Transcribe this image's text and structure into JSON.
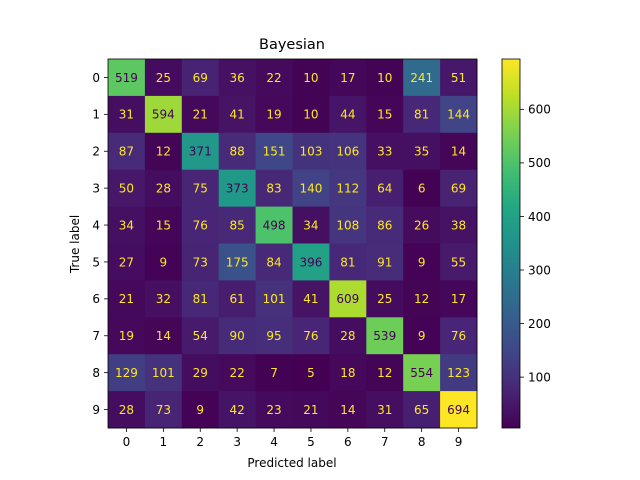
{
  "chart_data": {
    "type": "heatmap",
    "title": "Bayesian",
    "xlabel": "Predicted label",
    "ylabel": "True label",
    "x_categories": [
      "0",
      "1",
      "2",
      "3",
      "4",
      "5",
      "6",
      "7",
      "8",
      "9"
    ],
    "y_categories": [
      "0",
      "1",
      "2",
      "3",
      "4",
      "5",
      "6",
      "7",
      "8",
      "9"
    ],
    "matrix": [
      [
        519,
        25,
        69,
        36,
        22,
        10,
        17,
        10,
        241,
        51
      ],
      [
        31,
        594,
        21,
        41,
        19,
        10,
        44,
        15,
        81,
        144
      ],
      [
        87,
        12,
        371,
        88,
        151,
        103,
        106,
        33,
        35,
        14
      ],
      [
        50,
        28,
        75,
        373,
        83,
        140,
        112,
        64,
        6,
        69
      ],
      [
        34,
        15,
        76,
        85,
        498,
        34,
        108,
        86,
        26,
        38
      ],
      [
        27,
        9,
        73,
        175,
        84,
        396,
        81,
        91,
        9,
        55
      ],
      [
        21,
        32,
        81,
        61,
        101,
        41,
        609,
        25,
        12,
        17
      ],
      [
        19,
        14,
        54,
        90,
        95,
        76,
        28,
        539,
        9,
        76
      ],
      [
        129,
        101,
        29,
        22,
        7,
        5,
        18,
        12,
        554,
        123
      ],
      [
        28,
        73,
        9,
        42,
        23,
        21,
        14,
        31,
        65,
        694
      ]
    ],
    "colormap": "viridis",
    "colorbar": {
      "range": [
        5,
        694
      ],
      "ticks": [
        100,
        200,
        300,
        400,
        500,
        600
      ],
      "tick_labels": [
        "100",
        "200",
        "300",
        "400",
        "500",
        "600"
      ]
    },
    "text_color_dark": "#440154",
    "text_color_light": "#fde725"
  }
}
